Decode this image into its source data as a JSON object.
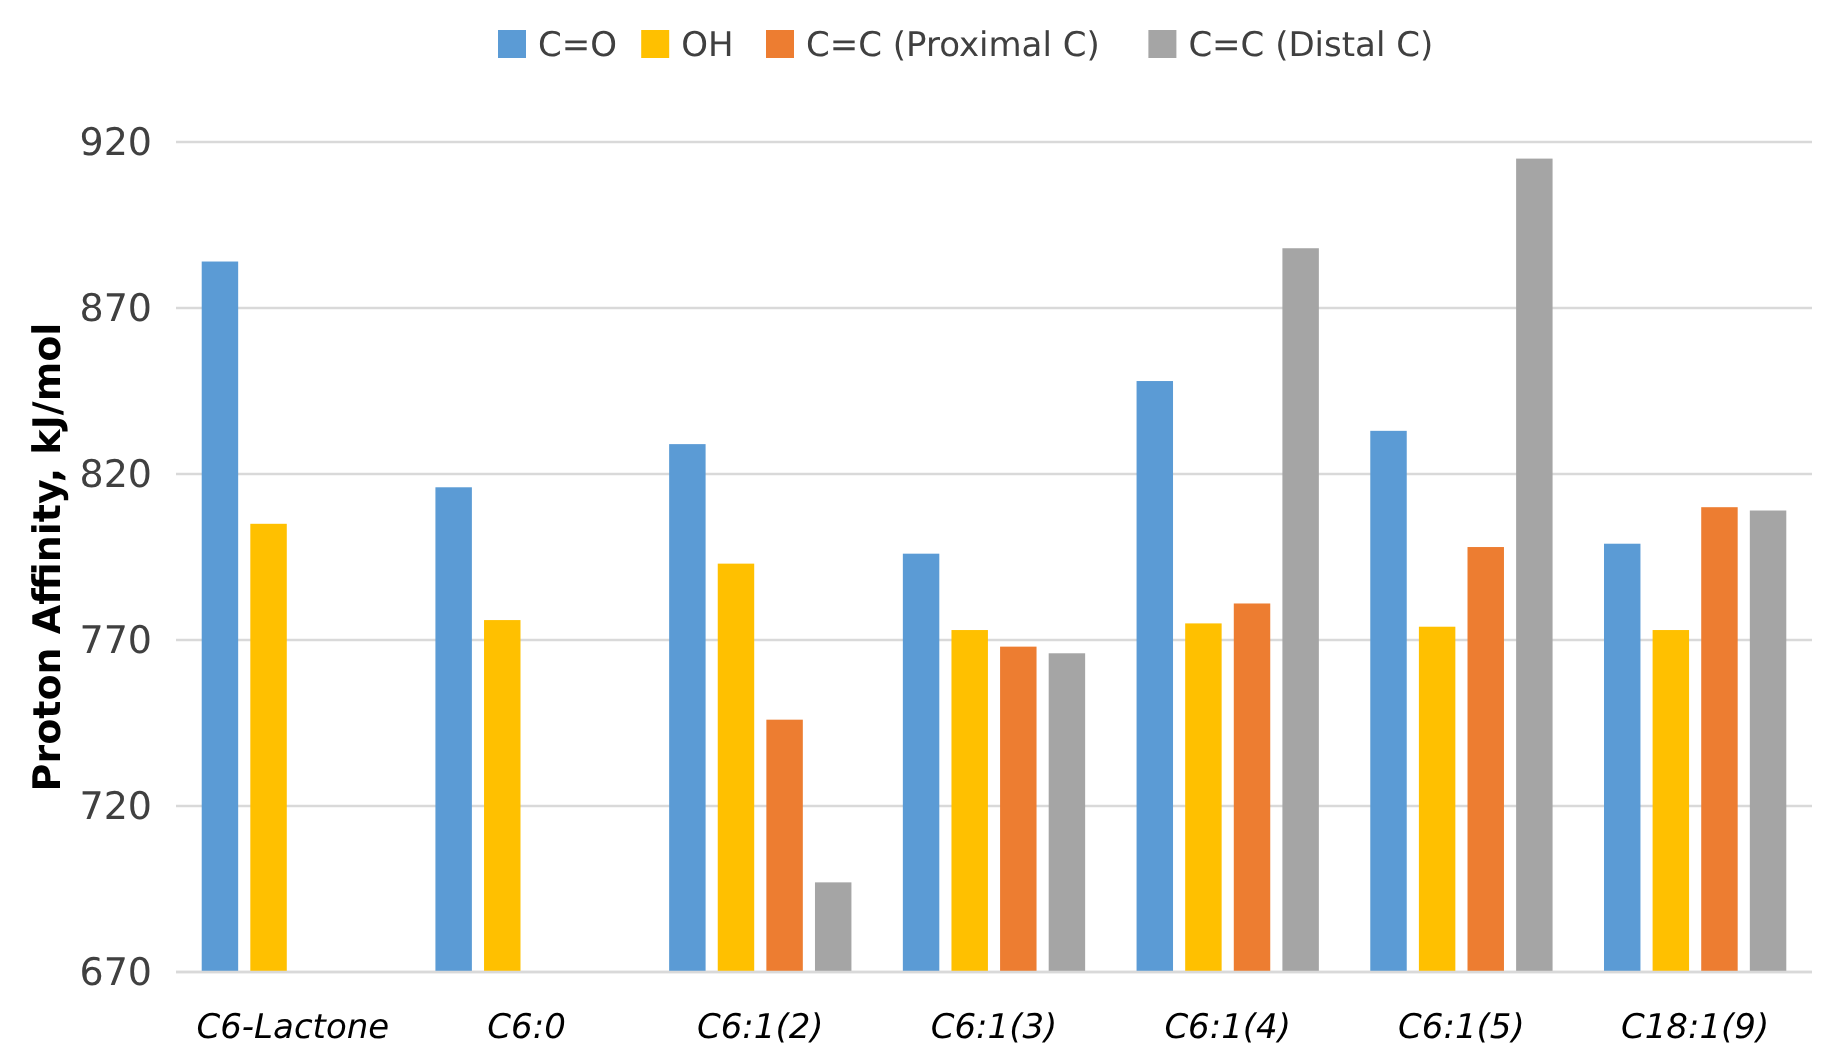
{
  "chart_data": {
    "type": "bar",
    "ylabel": "Proton Affinity, kJ/mol",
    "categories": [
      "C6-Lactone",
      "C6:0",
      "C6:1(2)",
      "C6:1(3)",
      "C6:1(4)",
      "C6:1(5)",
      "C18:1(9)"
    ],
    "series": [
      {
        "name": "C=O",
        "color": "#5b9bd5",
        "values": [
          884,
          816,
          829,
          796,
          848,
          833,
          799
        ]
      },
      {
        "name": "OH",
        "color": "#ffc000",
        "values": [
          805,
          776,
          793,
          773,
          775,
          774,
          773
        ]
      },
      {
        "name": "C=C (Proximal C)",
        "color": "#ed7d31",
        "values": [
          null,
          null,
          746,
          768,
          781,
          798,
          810
        ]
      },
      {
        "name": "C=C (Distal C)",
        "color": "#a5a5a5",
        "values": [
          null,
          null,
          697,
          766,
          888,
          915,
          809
        ]
      }
    ],
    "ylim": [
      670,
      920
    ],
    "yticks": [
      670,
      720,
      770,
      820,
      870,
      920
    ],
    "grid": "y",
    "legend": "top"
  }
}
